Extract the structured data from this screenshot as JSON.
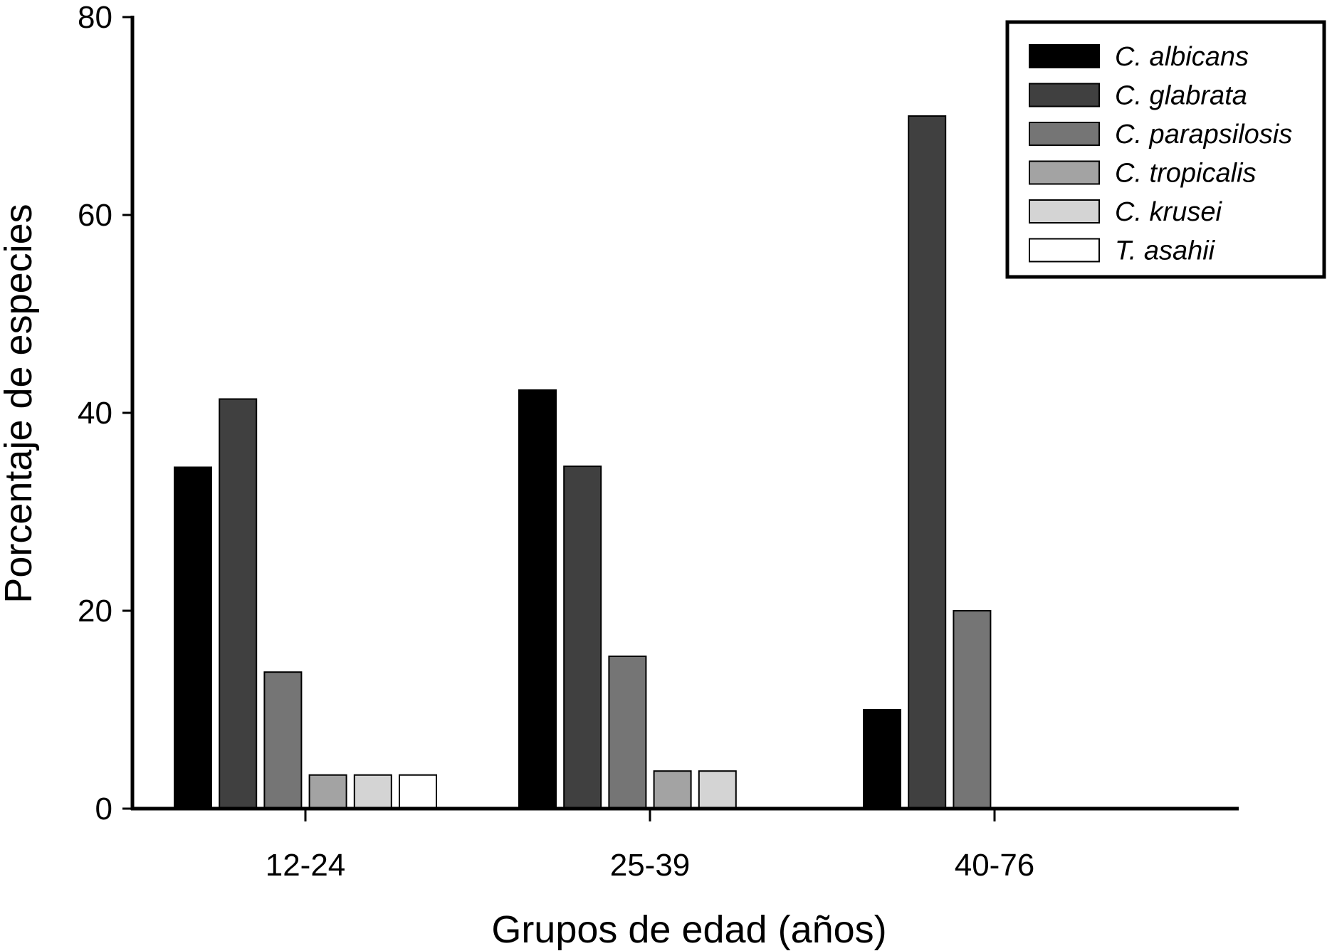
{
  "chart_data": {
    "type": "bar",
    "categories": [
      "12-24",
      "25-39",
      "40-76"
    ],
    "series": [
      {
        "name": "C. albicans",
        "color": "#000000",
        "values": [
          34.5,
          42.3,
          10.0
        ]
      },
      {
        "name": "C. glabrata",
        "color": "#404040",
        "values": [
          41.4,
          34.6,
          70.0
        ]
      },
      {
        "name": "C. parapsilosis",
        "color": "#757575",
        "values": [
          13.8,
          15.4,
          20.0
        ]
      },
      {
        "name": "C. tropicalis",
        "color": "#a3a3a3",
        "values": [
          3.4,
          3.8,
          0
        ]
      },
      {
        "name": "C. krusei",
        "color": "#d4d4d4",
        "values": [
          3.4,
          3.8,
          0
        ]
      },
      {
        "name": "T. asahii",
        "color": "#ffffff",
        "values": [
          3.4,
          0,
          0
        ]
      }
    ],
    "xlabel": "Grupos de edad (años)",
    "ylabel": "Porcentaje de especies",
    "ylim": [
      0,
      80
    ],
    "yticks": [
      0,
      20,
      40,
      60,
      80
    ],
    "grid": false,
    "legend_position": "top-right"
  }
}
